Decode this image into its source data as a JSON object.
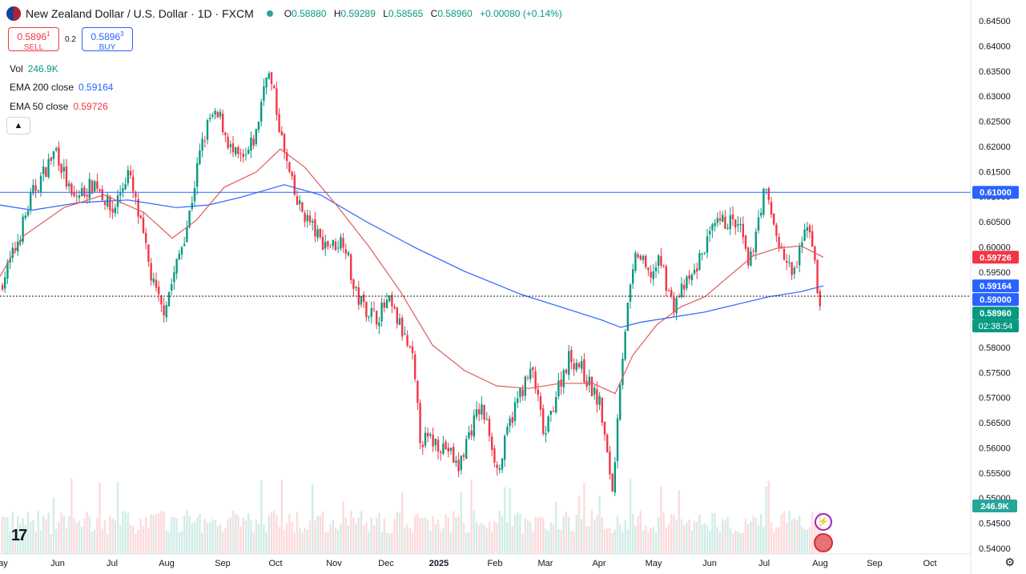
{
  "header": {
    "symbol": "New Zealand Dollar / U.S. Dollar · 1D · FXCM",
    "open_label": "O",
    "open": "0.58880",
    "high_label": "H",
    "high": "0.59289",
    "low_label": "L",
    "low": "0.58565",
    "close_label": "C",
    "close": "0.58960",
    "change": "+0.00080 (+0.14%)"
  },
  "trade": {
    "sell_price": "0.5896",
    "sell_sup": "1",
    "sell_label": "SELL",
    "spread": "0.2",
    "buy_price": "0.5896",
    "buy_sup": "3",
    "buy_label": "BUY"
  },
  "indicators": {
    "vol_label": "Vol",
    "vol_value": "246.9K",
    "ema200_label": "EMA 200 close",
    "ema200_value": "0.59164",
    "ema50_label": "EMA 50 close",
    "ema50_value": "0.59726"
  },
  "colors": {
    "up": "#089981",
    "down": "#f23645",
    "ema200": "#2962ff",
    "ema50": "#f23645",
    "hline": "#2962ff"
  },
  "chart_data": {
    "type": "candlestick",
    "x_ticks": [
      "ay",
      "Jun",
      "Jul",
      "Aug",
      "Sep",
      "Oct",
      "Nov",
      "Dec",
      "2025",
      "Feb",
      "Mar",
      "Apr",
      "May",
      "Jun",
      "Jul",
      "Aug",
      "Sep",
      "Oct"
    ],
    "y_ticks": [
      "0.64500",
      "0.64000",
      "0.63500",
      "0.63000",
      "0.62500",
      "0.62000",
      "0.61500",
      "0.61000",
      "0.60500",
      "0.60000",
      "0.59500",
      "0.59000",
      "0.58500",
      "0.58000",
      "0.57500",
      "0.57000",
      "0.56500",
      "0.56000",
      "0.55500",
      "0.55000",
      "0.54500",
      "0.54000"
    ],
    "ylim": [
      0.539,
      0.6465
    ],
    "horizontal_line": 0.61,
    "price_labels": [
      {
        "text": "0.61000",
        "value": 0.61,
        "color": "#2962ff"
      },
      {
        "text": "0.59726",
        "value": 0.59726,
        "color": "#f23645"
      },
      {
        "text": "0.59164",
        "value": 0.59164,
        "color": "#2962ff"
      },
      {
        "text": "0.59000",
        "value": 0.59,
        "color": "#2962ff"
      },
      {
        "text": "0.58960",
        "value": 0.5896,
        "color": "#089981"
      }
    ],
    "countdown": "02:38:54",
    "volume_label": "246.9K",
    "close_path": [
      [
        0,
        0.5915
      ],
      [
        18,
        0.5985
      ],
      [
        40,
        0.6095
      ],
      [
        70,
        0.6185
      ],
      [
        90,
        0.6085
      ],
      [
        120,
        0.612
      ],
      [
        140,
        0.606
      ],
      [
        160,
        0.614
      ],
      [
        175,
        0.604
      ],
      [
        190,
        0.5925
      ],
      [
        203,
        0.5865
      ],
      [
        215,
        0.5925
      ],
      [
        235,
        0.6045
      ],
      [
        250,
        0.618
      ],
      [
        262,
        0.6245
      ],
      [
        275,
        0.6245
      ],
      [
        290,
        0.6175
      ],
      [
        305,
        0.616
      ],
      [
        320,
        0.6215
      ],
      [
        333,
        0.6345
      ],
      [
        342,
        0.629
      ],
      [
        355,
        0.6175
      ],
      [
        370,
        0.608
      ],
      [
        385,
        0.6045
      ],
      [
        400,
        0.6005
      ],
      [
        415,
        0.5995
      ],
      [
        430,
        0.601
      ],
      [
        442,
        0.5905
      ],
      [
        455,
        0.5875
      ],
      [
        470,
        0.5855
      ],
      [
        485,
        0.5885
      ],
      [
        500,
        0.5835
      ],
      [
        515,
        0.577
      ],
      [
        525,
        0.5615
      ],
      [
        545,
        0.561
      ],
      [
        560,
        0.5595
      ],
      [
        572,
        0.5555
      ],
      [
        585,
        0.5625
      ],
      [
        600,
        0.568
      ],
      [
        612,
        0.5625
      ],
      [
        622,
        0.5545
      ],
      [
        635,
        0.564
      ],
      [
        650,
        0.571
      ],
      [
        665,
        0.575
      ],
      [
        680,
        0.5615
      ],
      [
        695,
        0.571
      ],
      [
        710,
        0.5775
      ],
      [
        722,
        0.5765
      ],
      [
        735,
        0.5725
      ],
      [
        750,
        0.568
      ],
      [
        758,
        0.558
      ],
      [
        766,
        0.551
      ],
      [
        772,
        0.57
      ],
      [
        782,
        0.5855
      ],
      [
        795,
        0.5985
      ],
      [
        810,
        0.5935
      ],
      [
        825,
        0.5965
      ],
      [
        840,
        0.5875
      ],
      [
        850,
        0.5905
      ],
      [
        865,
        0.5935
      ],
      [
        880,
        0.5995
      ],
      [
        895,
        0.6035
      ],
      [
        910,
        0.6045
      ],
      [
        925,
        0.6025
      ],
      [
        935,
        0.5945
      ],
      [
        945,
        0.604
      ],
      [
        955,
        0.6105
      ],
      [
        965,
        0.6045
      ],
      [
        975,
        0.5985
      ],
      [
        990,
        0.5935
      ],
      [
        1000,
        0.5985
      ],
      [
        1008,
        0.6045
      ],
      [
        1015,
        0.6
      ],
      [
        1020,
        0.5905
      ],
      [
        1024,
        0.5888
      ],
      [
        1028,
        0.5896
      ]
    ],
    "ema50_path": [
      [
        0,
        0.5935
      ],
      [
        30,
        0.6015
      ],
      [
        80,
        0.607
      ],
      [
        130,
        0.6095
      ],
      [
        180,
        0.606
      ],
      [
        215,
        0.601
      ],
      [
        245,
        0.6045
      ],
      [
        280,
        0.611
      ],
      [
        320,
        0.614
      ],
      [
        350,
        0.6185
      ],
      [
        380,
        0.615
      ],
      [
        420,
        0.6075
      ],
      [
        460,
        0.5995
      ],
      [
        500,
        0.5905
      ],
      [
        540,
        0.58
      ],
      [
        580,
        0.575
      ],
      [
        620,
        0.572
      ],
      [
        660,
        0.5715
      ],
      [
        700,
        0.5725
      ],
      [
        740,
        0.5725
      ],
      [
        768,
        0.5705
      ],
      [
        790,
        0.578
      ],
      [
        820,
        0.584
      ],
      [
        850,
        0.5875
      ],
      [
        880,
        0.5895
      ],
      [
        910,
        0.5935
      ],
      [
        940,
        0.5975
      ],
      [
        970,
        0.599
      ],
      [
        1000,
        0.5995
      ],
      [
        1028,
        0.59726
      ]
    ],
    "ema200_path": [
      [
        0,
        0.6075
      ],
      [
        40,
        0.6065
      ],
      [
        100,
        0.608
      ],
      [
        160,
        0.6085
      ],
      [
        220,
        0.607
      ],
      [
        260,
        0.6075
      ],
      [
        300,
        0.609
      ],
      [
        355,
        0.6115
      ],
      [
        400,
        0.6095
      ],
      [
        460,
        0.604
      ],
      [
        520,
        0.599
      ],
      [
        580,
        0.5945
      ],
      [
        650,
        0.59
      ],
      [
        710,
        0.587
      ],
      [
        750,
        0.585
      ],
      [
        775,
        0.5835
      ],
      [
        800,
        0.5845
      ],
      [
        840,
        0.5855
      ],
      [
        880,
        0.5865
      ],
      [
        920,
        0.588
      ],
      [
        960,
        0.5895
      ],
      [
        1000,
        0.5905
      ],
      [
        1028,
        0.59164
      ]
    ]
  }
}
